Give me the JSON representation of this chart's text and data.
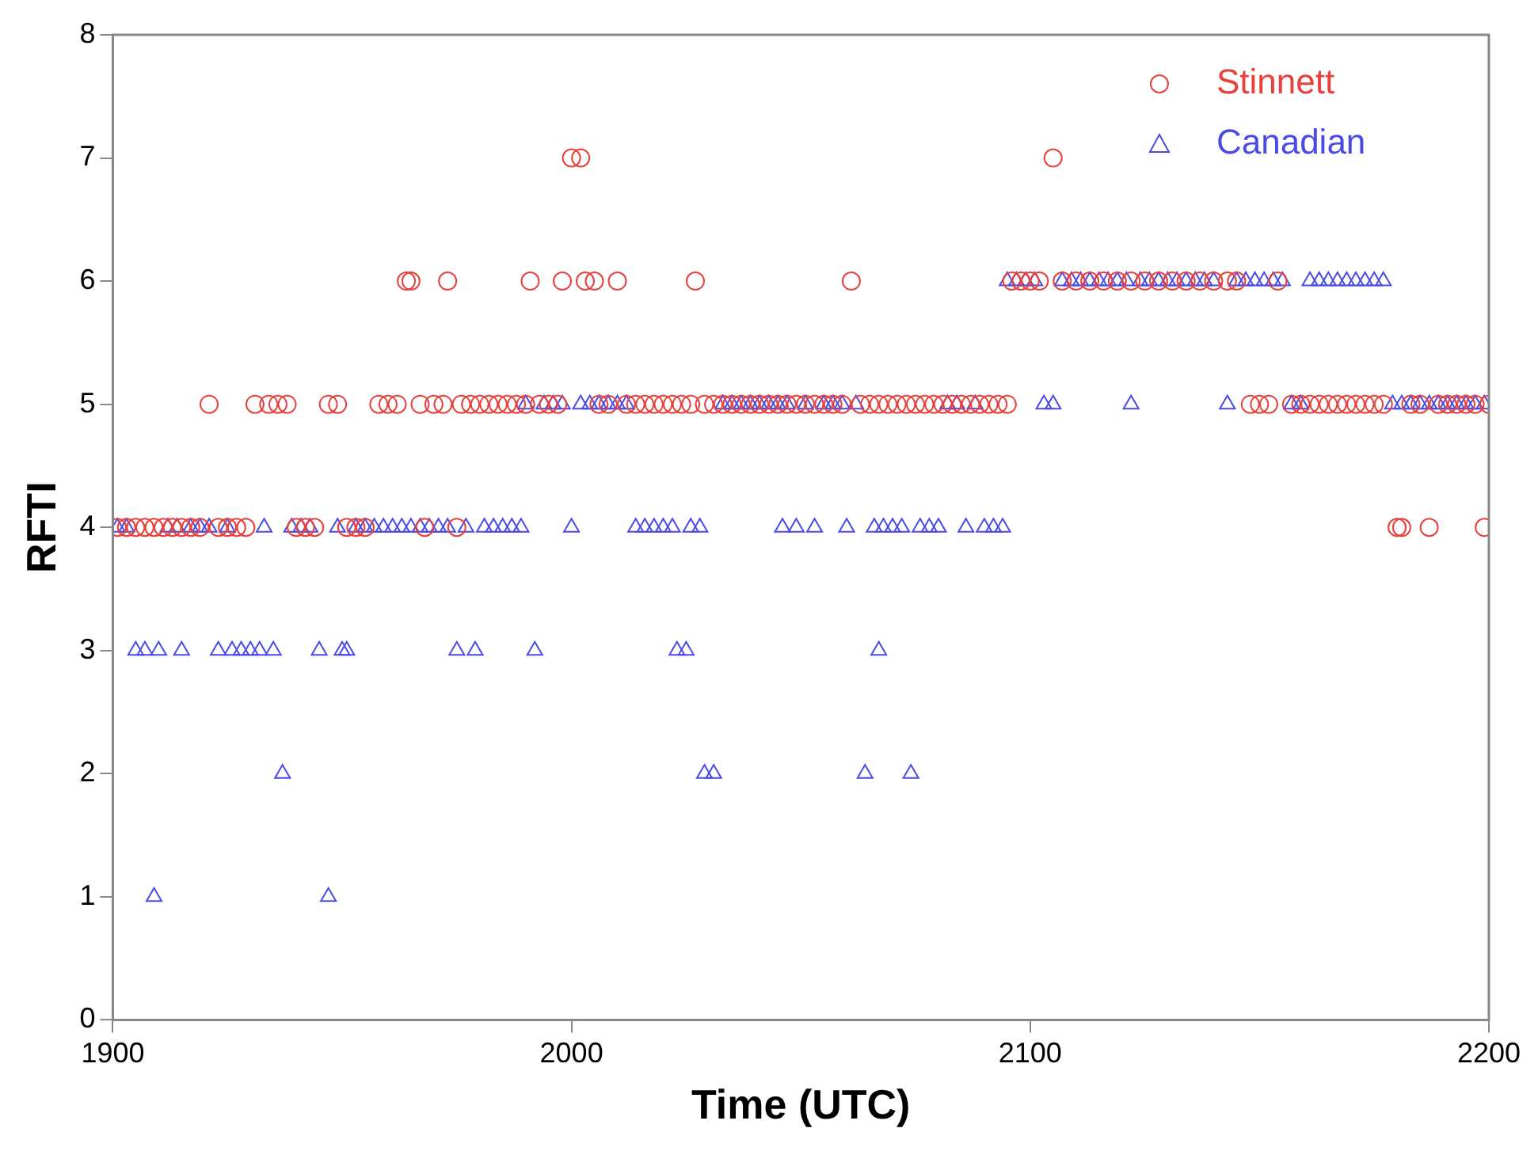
{
  "chart_data": {
    "type": "scatter",
    "xlabel": "Time (UTC)",
    "ylabel": "RFTI",
    "xlim": [
      1900,
      2200
    ],
    "xticks": [
      1900,
      2000,
      2100,
      2200
    ],
    "ylim": [
      0,
      8
    ],
    "yticks": [
      0,
      1,
      2,
      3,
      4,
      5,
      6,
      7,
      8
    ],
    "grid": false,
    "legend": "top right",
    "series": [
      {
        "name": "Stinnett",
        "color": "#e8413c",
        "marker": "circle",
        "x": [
          1901,
          1903,
          1905,
          1907,
          1909,
          1911,
          1913,
          1915,
          1917,
          1919,
          1921,
          1923,
          1925,
          1927,
          1929,
          1931,
          1934,
          1936,
          1938,
          1940,
          1942,
          1944,
          1947,
          1949,
          1951,
          1953,
          1955,
          1958,
          1960,
          1962,
          1964,
          1965,
          1967,
          1968,
          1970,
          1972,
          1973,
          1975,
          1976,
          1978,
          1980,
          1982,
          1984,
          1986,
          1988,
          1990,
          1991,
          1993,
          1995,
          1997,
          1998,
          2000,
          2002,
          2003,
          2005,
          2006,
          2008,
          2010,
          2012,
          2014,
          2016,
          2018,
          2020,
          2022,
          2024,
          2026,
          2027,
          2029,
          2031,
          2033,
          2035,
          2037,
          2039,
          2041,
          2043,
          2045,
          2047,
          2049,
          2051,
          2053,
          2055,
          2057,
          2059,
          2061,
          2063,
          2065,
          2067,
          2069,
          2071,
          2073,
          2075,
          2077,
          2079,
          2081,
          2083,
          2085,
          2087,
          2089,
          2091,
          2093,
          2095,
          2096,
          2098,
          2100,
          2102,
          2105,
          2107,
          2110,
          2113,
          2116,
          2119,
          2122,
          2125,
          2128,
          2131,
          2134,
          2137,
          2140,
          2143,
          2145,
          2148,
          2150,
          2152,
          2154,
          2157,
          2159,
          2161,
          2163,
          2165,
          2167,
          2169,
          2171,
          2173,
          2175,
          2177,
          2180,
          2181,
          2183,
          2185,
          2187,
          2189,
          2191,
          2193,
          2195,
          2197,
          2199,
          2200
        ],
        "values": [
          4,
          4,
          4,
          4,
          4,
          4,
          4,
          4,
          4,
          4,
          5,
          4,
          4,
          4,
          4,
          5,
          5,
          5,
          5,
          4,
          4,
          4,
          5,
          5,
          4,
          4,
          4,
          5,
          5,
          5,
          6,
          6,
          5,
          4,
          5,
          5,
          6,
          4,
          5,
          5,
          5,
          5,
          5,
          5,
          5,
          5,
          6,
          5,
          5,
          5,
          6,
          7,
          7,
          6,
          6,
          5,
          5,
          6,
          5,
          5,
          5,
          5,
          5,
          5,
          5,
          5,
          6,
          5,
          5,
          5,
          5,
          5,
          5,
          5,
          5,
          5,
          5,
          5,
          5,
          5,
          5,
          5,
          5,
          6,
          5,
          5,
          5,
          5,
          5,
          5,
          5,
          5,
          5,
          5,
          5,
          5,
          5,
          5,
          5,
          5,
          5,
          6,
          6,
          6,
          6,
          7,
          6,
          6,
          6,
          6,
          6,
          6,
          6,
          6,
          6,
          6,
          6,
          6,
          6,
          6,
          5,
          5,
          5,
          6,
          5,
          5,
          5,
          5,
          5,
          5,
          5,
          5,
          5,
          5,
          5,
          4,
          4,
          5,
          5,
          4,
          5,
          5,
          5,
          5,
          5,
          4,
          5
        ]
      },
      {
        "name": "Canadian",
        "color": "#4a4ae6",
        "marker": "triangle",
        "x": [
          1901,
          1903,
          1905,
          1907,
          1909,
          1910,
          1912,
          1914,
          1915,
          1917,
          1919,
          1921,
          1923,
          1925,
          1926,
          1928,
          1930,
          1932,
          1933,
          1935,
          1937,
          1939,
          1941,
          1943,
          1945,
          1947,
          1949,
          1950,
          1951,
          1953,
          1955,
          1957,
          1959,
          1961,
          1963,
          1965,
          1967,
          1969,
          1971,
          1973,
          1975,
          1977,
          1979,
          1981,
          1983,
          1985,
          1987,
          1989,
          1990,
          1992,
          1994,
          1996,
          1998,
          2000,
          2002,
          2004,
          2006,
          2008,
          2010,
          2012,
          2014,
          2016,
          2018,
          2020,
          2022,
          2023,
          2025,
          2026,
          2028,
          2029,
          2031,
          2033,
          2035,
          2037,
          2039,
          2041,
          2043,
          2045,
          2046,
          2047,
          2049,
          2051,
          2053,
          2055,
          2057,
          2059,
          2060,
          2062,
          2064,
          2066,
          2067,
          2068,
          2070,
          2072,
          2074,
          2076,
          2078,
          2080,
          2082,
          2084,
          2086,
          2088,
          2090,
          2092,
          2094,
          2095,
          2097,
          2099,
          2101,
          2103,
          2105,
          2107,
          2109,
          2111,
          2113,
          2115,
          2117,
          2119,
          2121,
          2122,
          2124,
          2126,
          2128,
          2130,
          2132,
          2134,
          2136,
          2138,
          2140,
          2143,
          2145,
          2147,
          2149,
          2151,
          2153,
          2155,
          2157,
          2159,
          2161,
          2163,
          2165,
          2167,
          2169,
          2171,
          2173,
          2175,
          2177,
          2179,
          2181,
          2183,
          2185,
          2187,
          2189,
          2191,
          2193,
          2195,
          2197,
          2199
        ],
        "values": [
          4,
          4,
          3,
          3,
          1,
          3,
          4,
          4,
          3,
          4,
          4,
          4,
          3,
          4,
          3,
          3,
          3,
          3,
          4,
          3,
          2,
          4,
          4,
          4,
          3,
          1,
          4,
          3,
          3,
          4,
          4,
          4,
          4,
          4,
          4,
          4,
          4,
          4,
          4,
          4,
          3,
          4,
          3,
          4,
          4,
          4,
          4,
          4,
          5,
          3,
          5,
          5,
          5,
          4,
          5,
          5,
          5,
          5,
          5,
          5,
          4,
          4,
          4,
          4,
          4,
          3,
          3,
          4,
          4,
          2,
          2,
          5,
          5,
          5,
          5,
          5,
          5,
          5,
          4,
          5,
          4,
          5,
          4,
          5,
          5,
          5,
          4,
          5,
          2,
          4,
          3,
          4,
          4,
          4,
          2,
          4,
          4,
          4,
          5,
          5,
          4,
          5,
          4,
          4,
          4,
          6,
          6,
          6,
          6,
          5,
          5,
          6,
          6,
          6,
          6,
          6,
          6,
          6,
          6,
          5,
          6,
          6,
          6,
          6,
          6,
          6,
          6,
          6,
          6,
          5,
          6,
          6,
          6,
          6,
          6,
          6,
          5,
          5,
          6,
          6,
          6,
          6,
          6,
          6,
          6,
          6,
          6,
          5,
          5,
          5,
          5,
          5,
          5,
          5,
          5,
          5,
          5,
          5
        ]
      }
    ]
  }
}
